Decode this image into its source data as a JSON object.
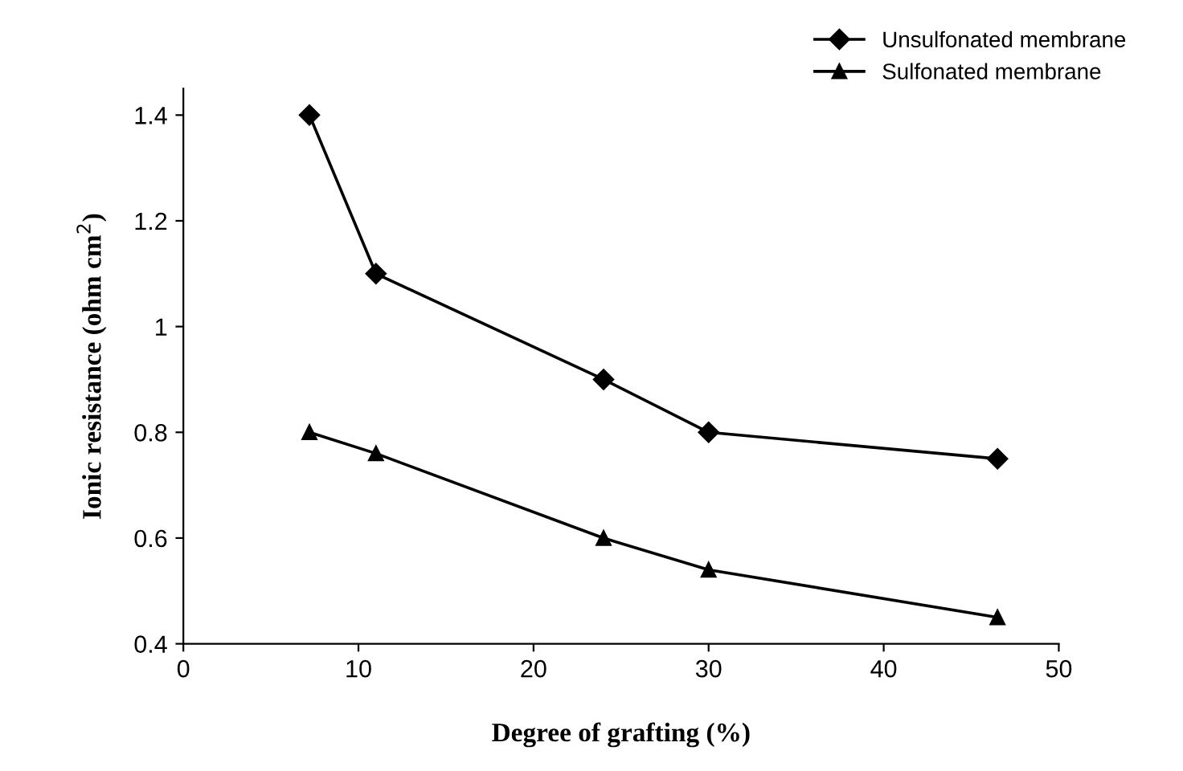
{
  "chart_data": {
    "type": "line",
    "xlabel": "Degree of grafting (%)",
    "ylabel": "Ionic resistance (ohm cm$^{2}$)",
    "x": [
      7.2,
      11,
      24,
      30,
      46.5
    ],
    "series": [
      {
        "name": "Unsulfonated membrane",
        "color": "#000000",
        "marker": "diamond",
        "values": [
          1.4,
          1.1,
          0.9,
          0.8,
          0.75
        ]
      },
      {
        "name": "Sulfonated membrane",
        "color": "#000000",
        "marker": "triangle",
        "values": [
          0.8,
          0.76,
          0.6,
          0.54,
          0.45
        ]
      }
    ],
    "xlim": [
      0,
      50
    ],
    "xticks": [
      0,
      10,
      20,
      30,
      40,
      50
    ],
    "ylim": [
      0.4,
      1.45
    ],
    "yticks": [
      0.4,
      0.6,
      0.8,
      {
        "value": 1.0,
        "label": "1"
      },
      1.2,
      1.4
    ],
    "grid": false,
    "legend": "top right",
    "line_style": "solid"
  }
}
